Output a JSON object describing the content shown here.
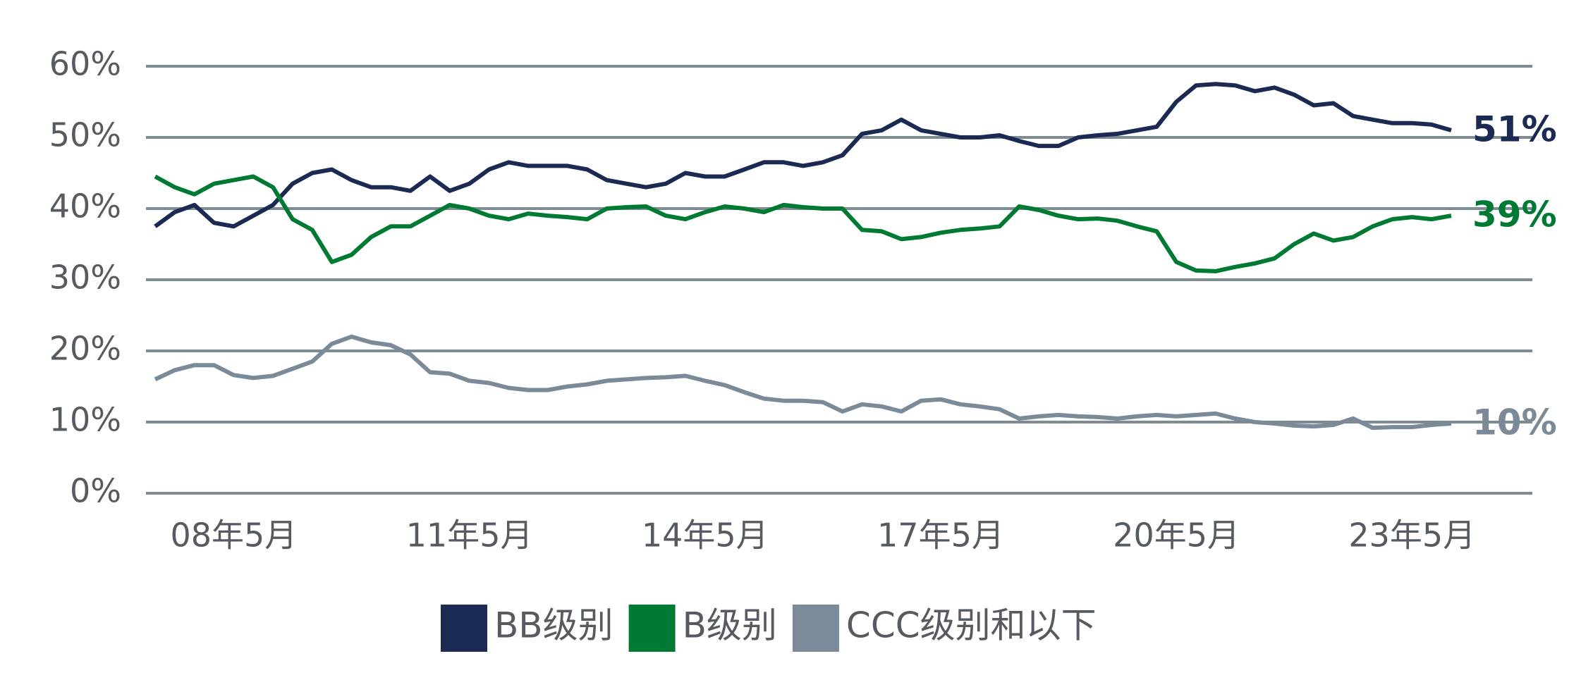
{
  "chart_data": {
    "type": "line",
    "categories": [
      null,
      null,
      null,
      null,
      "08年5月",
      null,
      null,
      null,
      null,
      null,
      null,
      null,
      null,
      null,
      null,
      null,
      "11年5月",
      null,
      null,
      null,
      null,
      null,
      null,
      null,
      null,
      null,
      null,
      null,
      "14年5月",
      null,
      null,
      null,
      null,
      null,
      null,
      null,
      null,
      null,
      null,
      null,
      "17年5月",
      null,
      null,
      null,
      null,
      null,
      null,
      null,
      null,
      null,
      null,
      null,
      "20年5月",
      null,
      null,
      null,
      null,
      null,
      null,
      null,
      null,
      null,
      null,
      null,
      "23年5月",
      null,
      null
    ],
    "series": [
      {
        "name": "BB级别",
        "color": "#1b2a52",
        "label": "51%",
        "values": [
          37.5,
          39.5,
          40.5,
          38,
          37.5,
          39,
          40.5,
          43.5,
          45,
          45.5,
          44,
          43,
          43,
          42.5,
          44.5,
          42.5,
          43.5,
          45.5,
          46.5,
          46,
          46,
          46,
          45.5,
          44,
          43.5,
          43,
          43.5,
          45,
          44.5,
          44.5,
          45.5,
          46.5,
          46.5,
          46,
          46.5,
          47.5,
          50.5,
          51,
          52.5,
          51,
          50.5,
          50,
          50,
          50.3,
          49.5,
          48.8,
          48.8,
          50,
          50.3,
          50.5,
          51,
          51.5,
          55,
          57.3,
          57.5,
          57.3,
          56.5,
          57,
          56,
          54.5,
          54.8,
          53,
          52.5,
          52,
          52,
          51.8,
          51
        ]
      },
      {
        "name": "B级别",
        "color": "#007a33",
        "label": "39%",
        "values": [
          44.5,
          43,
          42,
          43.5,
          44,
          44.5,
          43,
          38.5,
          37,
          32.5,
          33.5,
          36,
          37.5,
          37.5,
          39,
          40.5,
          40,
          39,
          38.5,
          39.3,
          39,
          38.8,
          38.5,
          40,
          40.2,
          40.3,
          39,
          38.5,
          39.5,
          40.3,
          40,
          39.5,
          40.5,
          40.2,
          40,
          40,
          37,
          36.8,
          35.7,
          36,
          36.6,
          37,
          37.2,
          37.5,
          40.3,
          39.8,
          39,
          38.5,
          38.6,
          38.3,
          37.5,
          36.8,
          32.5,
          31.3,
          31.2,
          31.8,
          32.3,
          33,
          35,
          36.5,
          35.5,
          36,
          37.5,
          38.5,
          38.8,
          38.5,
          39
        ]
      },
      {
        "name": "CCC级别和以下",
        "color": "#7a8a99",
        "label": "10%",
        "values": [
          16,
          17.3,
          18,
          18,
          16.6,
          16.2,
          16.5,
          17.5,
          18.5,
          21,
          22,
          21.2,
          20.8,
          19.5,
          17,
          16.8,
          15.8,
          15.5,
          14.8,
          14.5,
          14.5,
          15,
          15.3,
          15.8,
          16,
          16.2,
          16.3,
          16.5,
          15.8,
          15.2,
          14.2,
          13.3,
          13,
          13,
          12.8,
          11.5,
          12.5,
          12.2,
          11.5,
          13,
          13.2,
          12.5,
          12.2,
          11.8,
          10.5,
          10.8,
          11,
          10.8,
          10.7,
          10.5,
          10.8,
          11,
          10.8,
          11,
          11.2,
          10.5,
          10,
          9.8,
          9.5,
          9.4,
          9.6,
          10.5,
          9.2,
          9.3,
          9.3,
          9.6,
          9.8
        ]
      }
    ],
    "ylim": [
      0,
      60
    ],
    "yticks": [
      {
        "value": 0,
        "label": "0%"
      },
      {
        "value": 10,
        "label": "10%"
      },
      {
        "value": 20,
        "label": "20%"
      },
      {
        "value": 30,
        "label": "30%"
      },
      {
        "value": 40,
        "label": "40%"
      },
      {
        "value": 50,
        "label": "50%"
      },
      {
        "value": 60,
        "label": "60%"
      }
    ],
    "grid": true,
    "legend": "bottom"
  }
}
